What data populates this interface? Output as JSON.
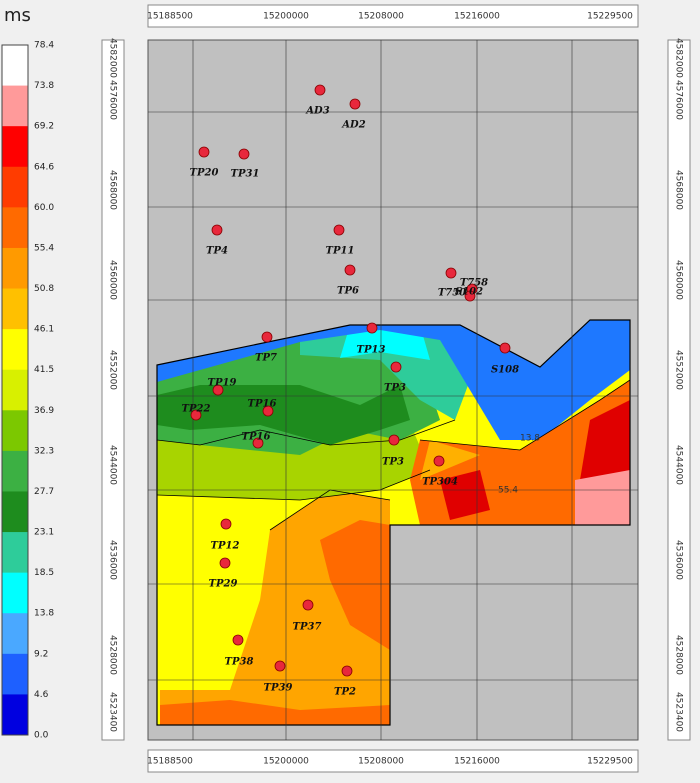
{
  "legend": {
    "unit": "ms",
    "labels": [
      "78.4",
      "73.8",
      "69.2",
      "64.6",
      "60.0",
      "55.4",
      "50.8",
      "46.1",
      "41.5",
      "36.9",
      "32.3",
      "27.7",
      "23.1",
      "18.5",
      "13.8",
      "9.2",
      "4.6",
      "0.0"
    ]
  },
  "axes": {
    "top": [
      "15188500",
      "15200000",
      "15208000",
      "15216000",
      "15229500"
    ],
    "bottom": [
      "15188500",
      "15200000",
      "15208000",
      "15216000",
      "15229500"
    ],
    "left": [
      "4582000",
      "4576000",
      "4568000",
      "4560000",
      "4552000",
      "4544000",
      "4536000",
      "4528000",
      "4523400"
    ],
    "right": [
      "4582000",
      "4576000",
      "4568000",
      "4560000",
      "4552000",
      "4544000",
      "4536000",
      "4528000",
      "4523400"
    ]
  },
  "wells": [
    "AD3",
    "AD2",
    "TP20",
    "TP31",
    "TP4",
    "TP11",
    "TP6",
    "T750",
    "T758",
    "S102",
    "TP7",
    "TP13",
    "S108",
    "TP3",
    "TP19",
    "TP22",
    "TP16",
    "TP16",
    "TP3",
    "TP304",
    "TP12",
    "TP29",
    "TP37",
    "TP38",
    "TP39",
    "TP2"
  ],
  "contour_labels": [
    "13.8",
    "55.4"
  ]
}
